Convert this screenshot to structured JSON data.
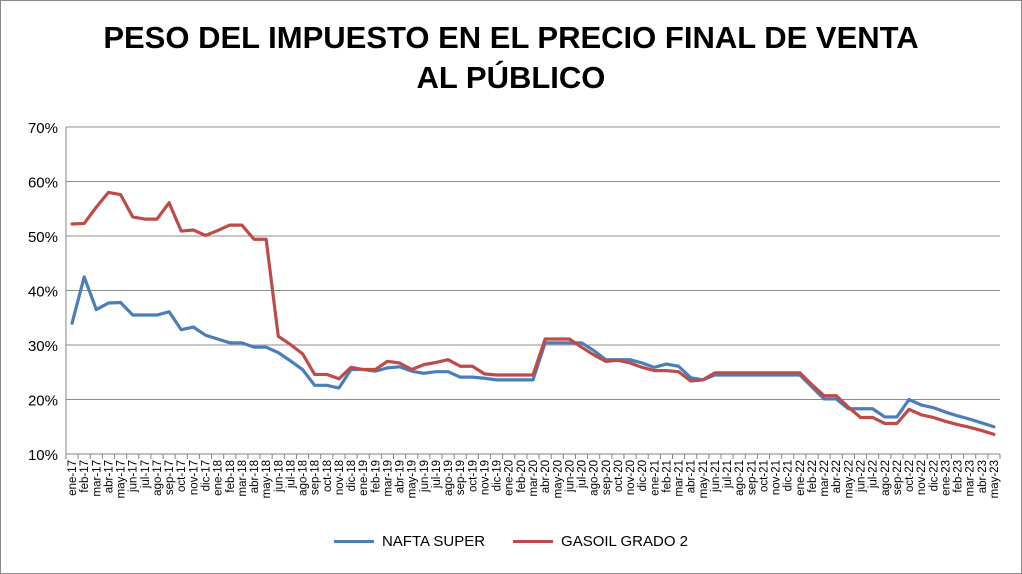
{
  "chart_data": {
    "type": "line",
    "title_line1": "PESO DEL IMPUESTO EN EL PRECIO FINAL DE VENTA",
    "title_line2": "AL PÚBLICO",
    "ylim": [
      0.1,
      0.7
    ],
    "yticks": [
      "10%",
      "20%",
      "30%",
      "40%",
      "50%",
      "60%",
      "70%"
    ],
    "grid": true,
    "legend_position": "bottom",
    "categories": [
      "ene-17",
      "feb-17",
      "mar-17",
      "abr-17",
      "may-17",
      "jun-17",
      "jul-17",
      "ago-17",
      "sep-17",
      "oct-17",
      "nov-17",
      "dic-17",
      "ene-18",
      "feb-18",
      "mar-18",
      "abr-18",
      "may-18",
      "jun-18",
      "jul-18",
      "ago-18",
      "sep-18",
      "oct-18",
      "nov-18",
      "dic-18",
      "ene-19",
      "feb-19",
      "mar-19",
      "abr-19",
      "may-19",
      "jun-19",
      "jul-19",
      "ago-19",
      "sep-19",
      "oct-19",
      "nov-19",
      "dic-19",
      "ene-20",
      "feb-20",
      "mar-20",
      "abr-20",
      "may-20",
      "jun-20",
      "jul-20",
      "ago-20",
      "sep-20",
      "oct-20",
      "nov-20",
      "dic-20",
      "ene-21",
      "feb-21",
      "mar-21",
      "abr-21",
      "may-21",
      "jun-21",
      "jul-21",
      "ago-21",
      "sep-21",
      "oct-21",
      "nov-21",
      "dic-21",
      "ene-22",
      "feb-22",
      "mar-22",
      "abr-22",
      "may-22",
      "jun-22",
      "jul-22",
      "ago-22",
      "sep-22",
      "oct-22",
      "nov-22",
      "dic-22",
      "ene-23",
      "feb-23",
      "mar-23",
      "abr-23",
      "may-23"
    ],
    "series": [
      {
        "name": "NAFTA SUPER",
        "color": "#4a7ebb",
        "values": [
          0.34,
          0.425,
          0.365,
          0.377,
          0.378,
          0.355,
          0.355,
          0.355,
          0.361,
          0.328,
          0.333,
          0.318,
          0.311,
          0.304,
          0.304,
          0.296,
          0.296,
          0.286,
          0.271,
          0.255,
          0.226,
          0.226,
          0.221,
          0.255,
          0.255,
          0.252,
          0.258,
          0.26,
          0.252,
          0.248,
          0.251,
          0.251,
          0.241,
          0.241,
          0.239,
          0.236,
          0.236,
          0.236,
          0.236,
          0.304,
          0.304,
          0.304,
          0.304,
          0.29,
          0.273,
          0.273,
          0.273,
          0.267,
          0.259,
          0.265,
          0.261,
          0.24,
          0.236,
          0.245,
          0.245,
          0.245,
          0.245,
          0.245,
          0.245,
          0.245,
          0.245,
          0.223,
          0.201,
          0.201,
          0.183,
          0.183,
          0.183,
          0.168,
          0.168,
          0.2,
          0.19,
          0.185,
          0.177,
          0.17,
          0.164,
          0.157,
          0.15
        ]
      },
      {
        "name": "GASOIL GRADO 2",
        "color": "#be4b48",
        "values": [
          0.522,
          0.523,
          0.553,
          0.58,
          0.576,
          0.535,
          0.531,
          0.531,
          0.561,
          0.509,
          0.511,
          0.501,
          0.51,
          0.52,
          0.52,
          0.494,
          0.494,
          0.316,
          0.301,
          0.284,
          0.246,
          0.246,
          0.238,
          0.259,
          0.255,
          0.255,
          0.27,
          0.267,
          0.255,
          0.264,
          0.268,
          0.273,
          0.261,
          0.261,
          0.247,
          0.245,
          0.245,
          0.245,
          0.245,
          0.311,
          0.311,
          0.311,
          0.296,
          0.282,
          0.27,
          0.272,
          0.267,
          0.259,
          0.253,
          0.253,
          0.251,
          0.234,
          0.236,
          0.249,
          0.249,
          0.249,
          0.249,
          0.249,
          0.249,
          0.249,
          0.249,
          0.227,
          0.207,
          0.207,
          0.186,
          0.167,
          0.167,
          0.156,
          0.156,
          0.182,
          0.172,
          0.167,
          0.16,
          0.154,
          0.149,
          0.143,
          0.136
        ]
      }
    ]
  }
}
